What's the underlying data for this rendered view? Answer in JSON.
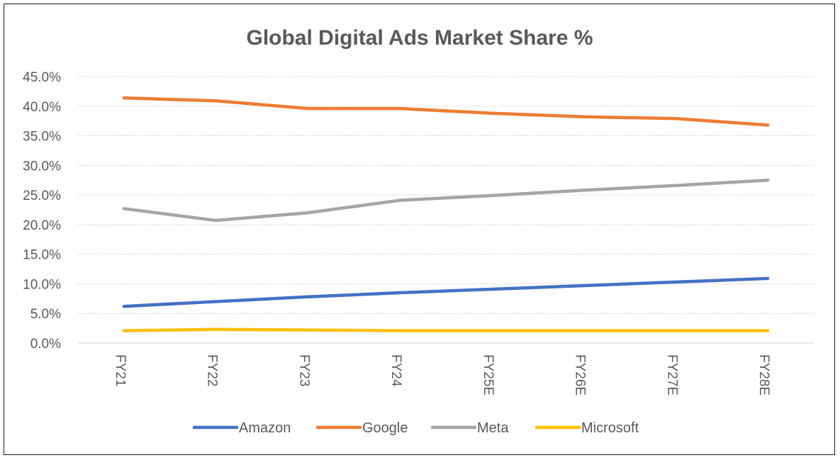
{
  "chart_data": {
    "type": "line",
    "title": "Global Digital Ads Market Share %",
    "xlabel": "",
    "ylabel": "",
    "categories": [
      "FY21",
      "FY22",
      "FY23",
      "FY24",
      "FY25E",
      "FY26E",
      "FY27E",
      "FY28E"
    ],
    "y_ticks": [
      "0.0%",
      "5.0%",
      "10.0%",
      "15.0%",
      "20.0%",
      "25.0%",
      "30.0%",
      "35.0%",
      "40.0%",
      "45.0%"
    ],
    "ylim": [
      0,
      45
    ],
    "grid": true,
    "legend_position": "bottom",
    "series": [
      {
        "name": "Amazon",
        "color": "#4472C4",
        "values": [
          6.2,
          7.0,
          7.8,
          8.5,
          9.1,
          9.7,
          10.3,
          10.9
        ]
      },
      {
        "name": "Google",
        "color": "#ED7D31",
        "values": [
          41.4,
          40.9,
          39.6,
          39.6,
          38.8,
          38.2,
          37.9,
          36.8
        ]
      },
      {
        "name": "Meta",
        "color": "#A5A5A5",
        "values": [
          22.7,
          20.7,
          22.0,
          24.1,
          24.9,
          25.8,
          26.6,
          27.5
        ]
      },
      {
        "name": "Microsoft",
        "color": "#FFC000",
        "values": [
          2.1,
          2.3,
          2.2,
          2.1,
          2.1,
          2.1,
          2.1,
          2.1
        ]
      }
    ]
  }
}
